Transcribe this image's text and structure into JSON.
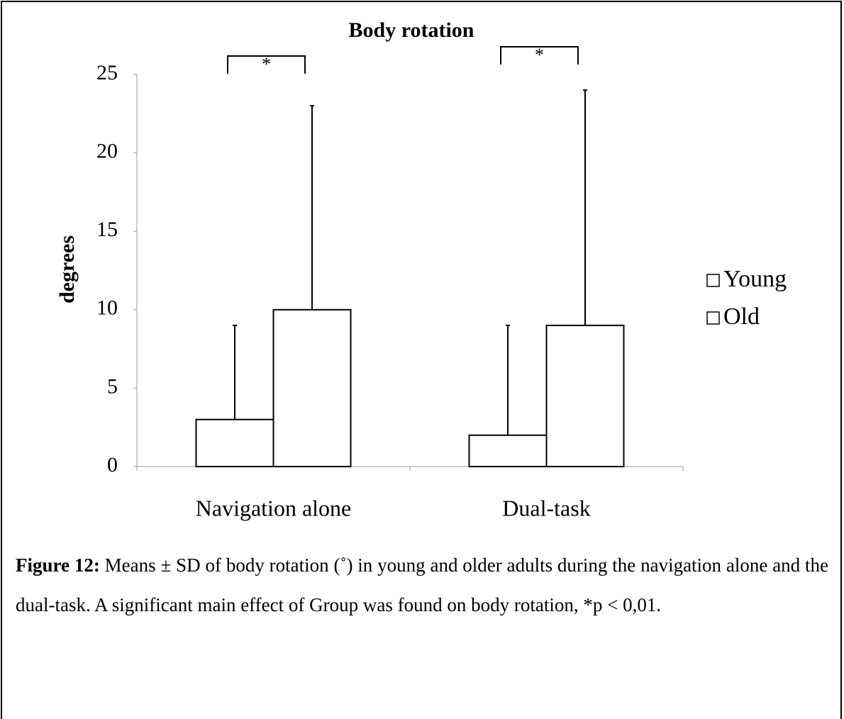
{
  "chart_data": {
    "type": "bar",
    "title": "Body rotation",
    "y_label": "degrees",
    "categories": [
      "Navigation alone",
      "Dual-task"
    ],
    "series": [
      {
        "name": "Young",
        "color": "#ffffff",
        "values": [
          3,
          2
        ],
        "errors": [
          6,
          7
        ]
      },
      {
        "name": "Old",
        "color": "#ffffff",
        "values": [
          10,
          9
        ],
        "errors": [
          13,
          15
        ]
      }
    ],
    "ylim": [
      0,
      25
    ],
    "yticks": [
      0,
      5,
      10,
      15,
      20,
      25
    ],
    "grid": false,
    "legend": "right",
    "annotations": [
      "*",
      "*"
    ]
  },
  "caption": {
    "label": "Figure 12:",
    "text": "Means ± SD of body rotation (˚) in young and older adults during the navigation alone and the dual-task.  A significant main effect of Group was found on body rotation,  *p < 0,01."
  }
}
